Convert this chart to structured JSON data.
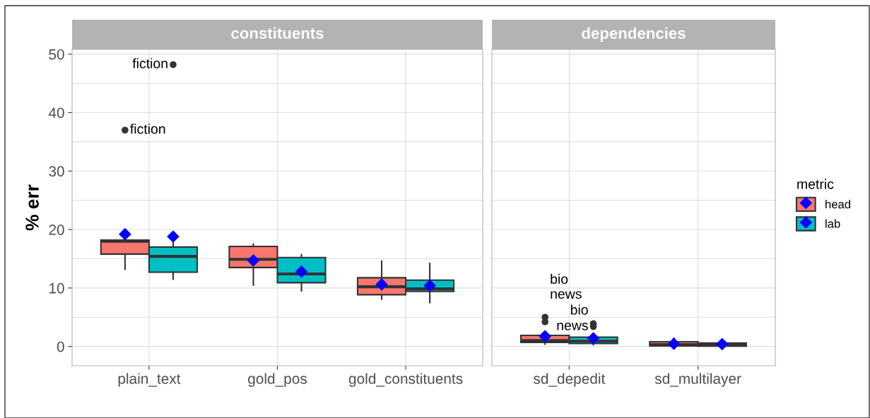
{
  "chart_data": [
    {
      "type": "box",
      "title": "constituents",
      "ylabel": "% err",
      "categories": [
        "plain_text",
        "gold_pos",
        "gold_constituents"
      ],
      "ylim": [
        -3.3,
        50.8
      ],
      "yticks": [
        0,
        10,
        20,
        30,
        40,
        50
      ],
      "grid": true,
      "legend": "right",
      "legend_title": "metric",
      "series": [
        {
          "name": "head",
          "color": "#f8766d",
          "boxes": [
            {
              "low": 13.2,
              "q1": 15.8,
              "median": 18.0,
              "q3": 18.2,
              "high": 18.6,
              "mean": 19.2,
              "outliers": [
                37.0
              ]
            },
            {
              "low": 10.5,
              "q1": 13.5,
              "median": 14.9,
              "q3": 17.1,
              "high": 17.5,
              "mean": 14.7
            },
            {
              "low": 8.1,
              "q1": 8.85,
              "median": 10.2,
              "q3": 11.75,
              "high": 14.6,
              "mean": 10.6
            }
          ]
        },
        {
          "name": "lab",
          "color": "#00bfc4",
          "boxes": [
            {
              "low": 11.5,
              "q1": 12.7,
              "median": 15.4,
              "q3": 17.0,
              "high": 17.7,
              "mean": 18.8,
              "outliers": [
                48.2
              ]
            },
            {
              "low": 9.5,
              "q1": 10.9,
              "median": 12.4,
              "q3": 15.2,
              "high": 15.7,
              "mean": 12.8
            },
            {
              "low": 7.5,
              "q1": 9.4,
              "median": 9.85,
              "q3": 11.35,
              "high": 14.2,
              "mean": 10.4
            }
          ]
        }
      ],
      "annotations": [
        "fiction",
        "fiction"
      ]
    },
    {
      "type": "box",
      "title": "dependencies",
      "categories": [
        "sd_depedit",
        "sd_multilayer"
      ],
      "ylim": [
        -3.3,
        50.8
      ],
      "yticks": [
        0,
        10,
        20,
        30,
        40,
        50
      ],
      "tick_labels": "x",
      "grid": true,
      "series": [
        {
          "color": "#f8766d",
          "boxes": [
            {
              "low": 0.4,
              "q1": 0.7,
              "median": 1.0,
              "q3": 1.9,
              "high": 1.9,
              "mean": 1.75,
              "outliers": [
                5.0,
                4.2
              ]
            },
            {
              "low": 0.0,
              "q1": 0.1,
              "median": 0.3,
              "q3": 0.8,
              "high": 1.4,
              "mean": 0.45
            }
          ]
        },
        {
          "color": "#00bfc4",
          "boxes": [
            {
              "low": 0.3,
              "q1": 0.5,
              "median": 0.9,
              "q3": 1.6,
              "high": 1.6,
              "mean": 1.4,
              "outliers": [
                3.9,
                3.4
              ]
            },
            {
              "low": 0.0,
              "q1": 0.05,
              "median": 0.3,
              "q3": 0.6,
              "high": 1.1,
              "mean": 0.4
            }
          ]
        }
      ],
      "annotations": [
        "bio",
        "news",
        "bio",
        "news"
      ]
    }
  ]
}
